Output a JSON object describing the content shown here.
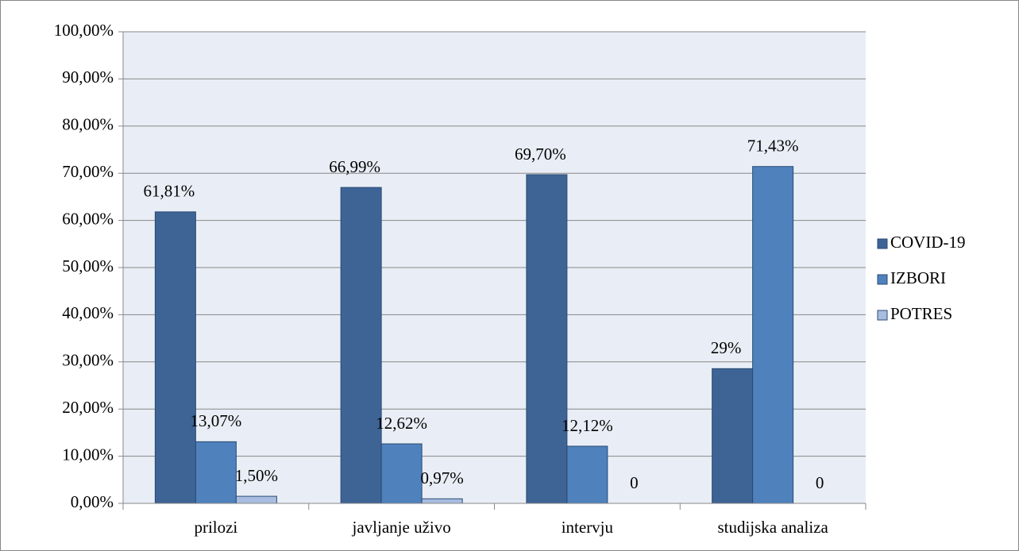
{
  "chart_data": {
    "type": "bar",
    "categories": [
      "prilozi",
      "javljanje uživo",
      "intervju",
      "studijska analiza"
    ],
    "series": [
      {
        "name": "COVID-19",
        "color": "#3e6496",
        "values": [
          61.81,
          66.99,
          69.7,
          28.57
        ],
        "value_labels": [
          "61,81%",
          "66,99%",
          "69,70%",
          "29%"
        ]
      },
      {
        "name": "IZBORI",
        "color": "#4f81bd",
        "values": [
          13.07,
          12.62,
          12.12,
          71.43
        ],
        "value_labels": [
          "13,07%",
          "12,62%",
          "12,12%",
          "71,43%"
        ]
      },
      {
        "name": "POTRES",
        "color": "#a8bde0",
        "values": [
          1.5,
          0.97,
          0,
          0
        ],
        "value_labels": [
          "1,50%",
          "0,97%",
          "0",
          "0"
        ]
      }
    ],
    "ylim": [
      0,
      100
    ],
    "yticks": [
      {
        "value": 0,
        "label": "0,00%"
      },
      {
        "value": 10,
        "label": "10,00%"
      },
      {
        "value": 20,
        "label": "20,00%"
      },
      {
        "value": 30,
        "label": "30,00%"
      },
      {
        "value": 40,
        "label": "40,00%"
      },
      {
        "value": 50,
        "label": "50,00%"
      },
      {
        "value": 60,
        "label": "60,00%"
      },
      {
        "value": 70,
        "label": "70,00%"
      },
      {
        "value": 80,
        "label": "80,00%"
      },
      {
        "value": 90,
        "label": "90,00%"
      },
      {
        "value": 100,
        "label": "100,00%"
      }
    ],
    "grid": true,
    "legend": "right"
  }
}
